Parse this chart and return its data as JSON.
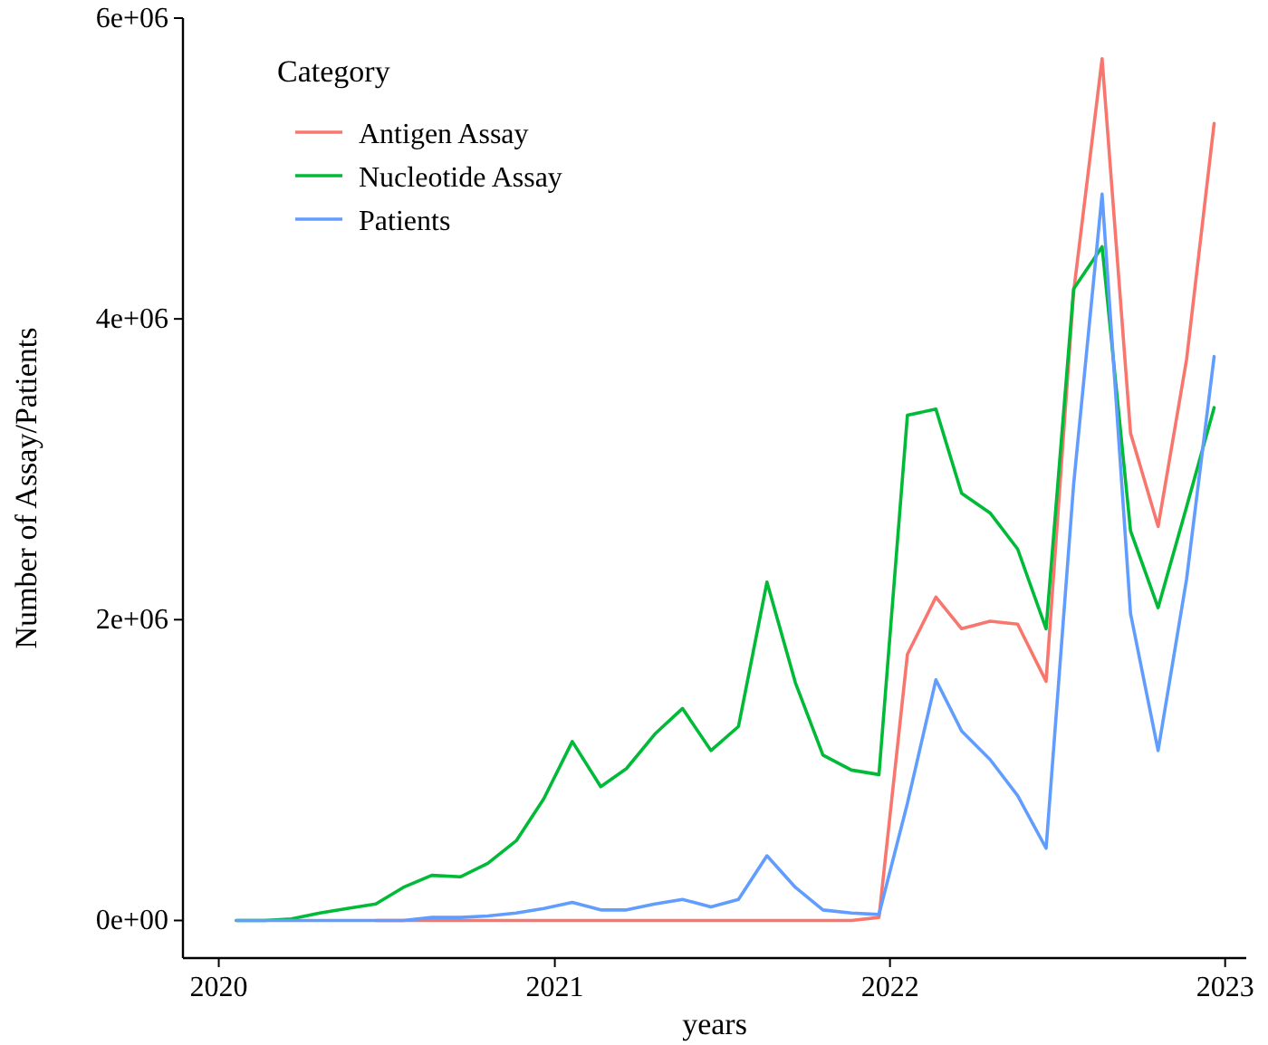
{
  "chart_data": {
    "type": "line",
    "xlabel": "years",
    "ylabel": "Number of Assay/Patients",
    "legend_title": "Category",
    "legend": "top left",
    "grid": false,
    "x": [
      "2020-01-20",
      "2020-02-20",
      "2020-03-20",
      "2020-04-20",
      "2020-05-20",
      "2020-06-20",
      "2020-07-20",
      "2020-08-20",
      "2020-09-20",
      "2020-10-20",
      "2020-11-20",
      "2020-12-20",
      "2021-01-20",
      "2021-02-20",
      "2021-03-20",
      "2021-04-20",
      "2021-05-20",
      "2021-06-20",
      "2021-07-20",
      "2021-08-20",
      "2021-09-20",
      "2021-10-20",
      "2021-11-20",
      "2021-12-20",
      "2022-01-20",
      "2022-02-20",
      "2022-03-20",
      "2022-04-20",
      "2022-05-20",
      "2022-06-20",
      "2022-07-20",
      "2022-08-20",
      "2022-09-20",
      "2022-10-20",
      "2022-11-20",
      "2022-12-20"
    ],
    "xlim": [
      "2019-11-23",
      "2023-01-24"
    ],
    "xticks": [
      {
        "value": "2020-01-01",
        "label": "2020"
      },
      {
        "value": "2021-01-01",
        "label": "2021"
      },
      {
        "value": "2022-01-01",
        "label": "2022"
      },
      {
        "value": "2023-01-01",
        "label": "2023"
      }
    ],
    "ylim": [
      -250000,
      6000000
    ],
    "yticks": [
      {
        "value": 0,
        "label": "0e+00"
      },
      {
        "value": 2000000,
        "label": "2e+06"
      },
      {
        "value": 4000000,
        "label": "4e+06"
      },
      {
        "value": 6000000,
        "label": "6e+06"
      }
    ],
    "series": [
      {
        "name": "Antigen Assay",
        "color": "#f8766d",
        "values": [
          null,
          null,
          null,
          null,
          null,
          0,
          0,
          0,
          0,
          0,
          0,
          0,
          0,
          0,
          0,
          0,
          0,
          0,
          0,
          0,
          0,
          0,
          0,
          20000,
          1770000,
          2150000,
          1940000,
          1990000,
          1970000,
          1590000,
          4180000,
          5730000,
          3240000,
          2620000,
          3730000,
          5300000
        ]
      },
      {
        "name": "Nucleotide Assay",
        "color": "#00ba38",
        "values": [
          0,
          0,
          10000,
          50000,
          80000,
          110000,
          220000,
          300000,
          290000,
          380000,
          530000,
          810000,
          1190000,
          890000,
          1010000,
          1240000,
          1410000,
          1130000,
          1290000,
          2250000,
          1580000,
          1100000,
          1000000,
          970000,
          3360000,
          3400000,
          2840000,
          2710000,
          2470000,
          1940000,
          4200000,
          4480000,
          2590000,
          2080000,
          2750000,
          3410000
        ]
      },
      {
        "name": "Patients",
        "color": "#619cff",
        "values": [
          0,
          0,
          0,
          0,
          0,
          0,
          0,
          20000,
          20000,
          30000,
          50000,
          80000,
          120000,
          70000,
          70000,
          110000,
          140000,
          90000,
          140000,
          430000,
          220000,
          70000,
          50000,
          40000,
          780000,
          1600000,
          1260000,
          1070000,
          830000,
          480000,
          2900000,
          4830000,
          2040000,
          1130000,
          2270000,
          3750000
        ]
      }
    ]
  }
}
